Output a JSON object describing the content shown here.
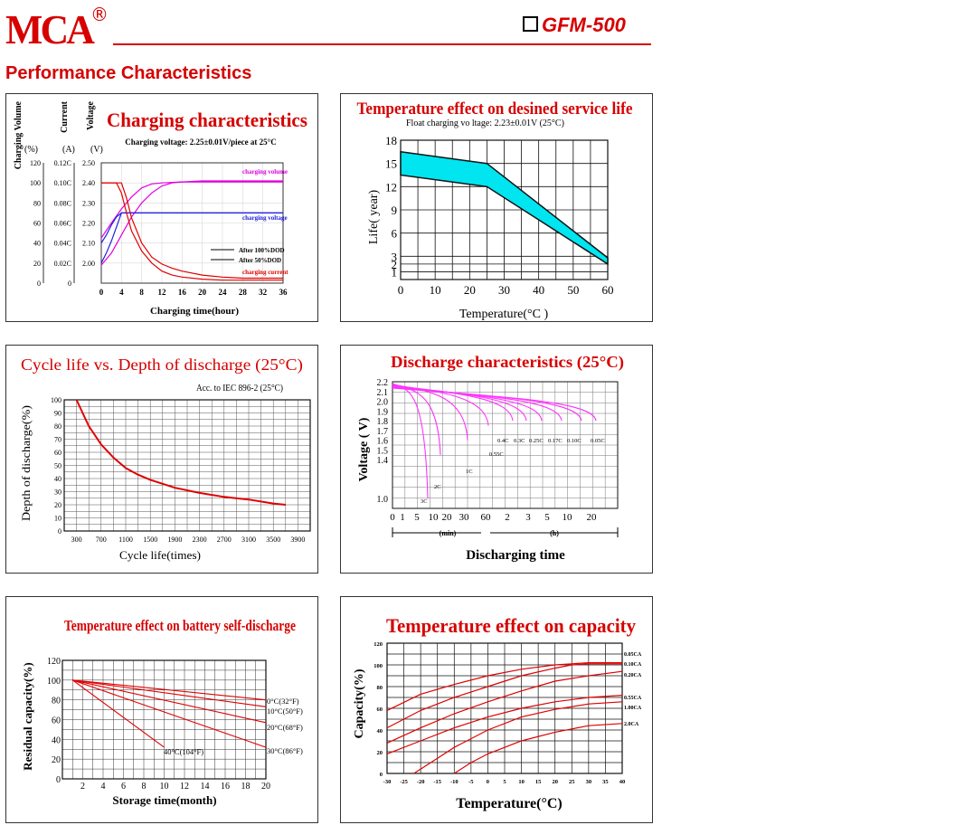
{
  "header": {
    "brand": "MCA",
    "registered": "®",
    "model": "GFM-500",
    "section_title": "Performance Characteristics"
  },
  "colors": {
    "accent": "#d60000",
    "magenta": "#e000e0",
    "blue": "#2020e0",
    "cyan": "#00e5f0",
    "pink": "#ff33ff"
  },
  "chart_data": [
    {
      "id": "charging",
      "type": "line",
      "title": "Charging characteristics",
      "subtitle": "Charging voltage: 2.25±0.01V/piece at 25°C",
      "xlabel": "Charging time(hour)",
      "ylabels": [
        "Charging Volume",
        "Current",
        "Voltage"
      ],
      "units": [
        "(%)",
        "(A)",
        "(V)"
      ],
      "xticks": [
        "0",
        "4",
        "8",
        "12",
        "16",
        "20",
        "24",
        "28",
        "32",
        "36"
      ],
      "xlim": [
        0,
        36
      ],
      "volume_ticks": [
        "120",
        "100",
        "80",
        "60",
        "40",
        "20",
        "0"
      ],
      "current_ticks": [
        "0.12C",
        "0.10C",
        "0.08C",
        "0.06C",
        "0.04C",
        "0.02C",
        "0"
      ],
      "voltage_ticks": [
        "2.50",
        "2.40",
        "2.30",
        "2.20",
        "2.10",
        "2.00"
      ],
      "ylim": [
        0,
        120
      ],
      "legend": [
        "After 100%DOD",
        "After 50%DOD"
      ],
      "curve_labels": [
        "charging volume",
        "charging voltage",
        "charging current"
      ],
      "series": [
        {
          "name": "charging volume",
          "color": "#e000e0",
          "x": [
            0,
            2,
            4,
            6,
            8,
            10,
            12,
            14,
            16,
            20,
            24,
            28,
            36
          ],
          "y": [
            18,
            30,
            48,
            66,
            80,
            90,
            97,
            100,
            101,
            102,
            102,
            102,
            102
          ]
        },
        {
          "name": "charging volume",
          "color": "#e000e0",
          "x": [
            0,
            2,
            4,
            6,
            8,
            10,
            12,
            16,
            20,
            36
          ],
          "y": [
            45,
            60,
            74,
            86,
            95,
            99,
            100,
            101,
            101,
            101
          ]
        },
        {
          "name": "charging voltage",
          "color": "#2020e0",
          "x": [
            0,
            1,
            2,
            3,
            4,
            6,
            36
          ],
          "y": [
            40,
            48,
            58,
            66,
            70,
            70,
            70
          ]
        },
        {
          "name": "charging voltage",
          "color": "#2020e0",
          "x": [
            0,
            1,
            2,
            3,
            4,
            36
          ],
          "y": [
            20,
            30,
            42,
            56,
            70,
            70
          ]
        },
        {
          "name": "charging current",
          "color": "#e00000",
          "x": [
            0,
            4,
            5,
            6,
            8,
            10,
            12,
            14,
            16,
            20,
            24,
            28,
            36
          ],
          "y": [
            100,
            100,
            85,
            65,
            40,
            26,
            19,
            15,
            12,
            8,
            6,
            5,
            5
          ]
        },
        {
          "name": "charging current",
          "color": "#e00000",
          "x": [
            0,
            3,
            4,
            5,
            6,
            8,
            10,
            12,
            14,
            16,
            20,
            24,
            36
          ],
          "y": [
            100,
            100,
            90,
            70,
            52,
            32,
            20,
            12,
            8,
            6,
            4,
            3,
            3
          ]
        }
      ]
    },
    {
      "id": "temp-life",
      "type": "area",
      "title": "Temperature effect on desined service life",
      "subtitle": "Float charging vo ltage: 2.23±0.01V (25°C)",
      "xlabel": "Temperature(°C )",
      "ylabel": "Life( year)",
      "xticks": [
        "0",
        "10",
        "20",
        "30",
        "40",
        "50",
        "60"
      ],
      "yticks": [
        "1",
        "2",
        "3",
        "6",
        "9",
        "12",
        "15",
        "18"
      ],
      "xlim": [
        0,
        60
      ],
      "ylim": [
        0,
        18
      ],
      "band_upper": {
        "x": [
          0,
          25,
          60
        ],
        "y": [
          16.5,
          15,
          2.8
        ]
      },
      "band_lower": {
        "x": [
          0,
          25,
          60
        ],
        "y": [
          13.5,
          12,
          2
        ]
      }
    },
    {
      "id": "cycle-life",
      "type": "line",
      "title": "Cycle life vs. Depth of discharge (25°C)",
      "subtitle": "Acc. to IEC 896-2 (25°C)",
      "xlabel": "Cycle life(times)",
      "ylabel": "Depth of discharge(%)",
      "xticks": [
        "300",
        "700",
        "1100",
        "1500",
        "1900",
        "2300",
        "2700",
        "3100",
        "3500",
        "3900"
      ],
      "yticks": [
        "0",
        "10",
        "20",
        "30",
        "40",
        "50",
        "60",
        "70",
        "80",
        "90",
        "100"
      ],
      "xlim": [
        100,
        4100
      ],
      "ylim": [
        0,
        100
      ],
      "series": [
        {
          "x": [
            300,
            500,
            700,
            900,
            1100,
            1300,
            1500,
            1900,
            2300,
            2700,
            3100,
            3500,
            3700
          ],
          "y": [
            100,
            80,
            66,
            56,
            48,
            43,
            39,
            33,
            29,
            26,
            24,
            21,
            20
          ]
        }
      ]
    },
    {
      "id": "discharge",
      "type": "line",
      "title": "Discharge characteristics (25°C)",
      "xlabel": "Discharging time",
      "ylabel": "Voltage ( V)",
      "xticks": [
        "0",
        "1",
        "5",
        "10",
        "20",
        "30",
        "60",
        "2",
        "3",
        "5",
        "10",
        "20"
      ],
      "xunits": [
        "(min)",
        "(h)"
      ],
      "yticks": [
        "2.2",
        "2.1",
        "2.0",
        "1.9",
        "1.8",
        "1.7",
        "1.6",
        "1.5",
        "1.4",
        "1.0"
      ],
      "ylim": [
        0.9,
        2.2
      ],
      "curve_labels": [
        "3C",
        "2C",
        "1C",
        "0.55C",
        "0.4C",
        "0.3C",
        "0.25C",
        "0.17C",
        "0.10C",
        "0.05C"
      ]
    },
    {
      "id": "self-discharge",
      "type": "line",
      "title": "Temperature effect on battery self-discharge",
      "xlabel": "Storage time(month)",
      "ylabel": "Residual capacity(%)",
      "xticks": [
        "2",
        "4",
        "6",
        "8",
        "10",
        "12",
        "14",
        "16",
        "18",
        "20"
      ],
      "yticks": [
        "0",
        "20",
        "40",
        "60",
        "80",
        "100",
        "120"
      ],
      "xlim": [
        0,
        20
      ],
      "ylim": [
        0,
        120
      ],
      "series": [
        {
          "name": "0°C(32°F)",
          "x": [
            1,
            20
          ],
          "y": [
            100,
            80
          ]
        },
        {
          "name": "10°C(50°F)",
          "x": [
            1,
            20
          ],
          "y": [
            100,
            73
          ]
        },
        {
          "name": "20°C(68°F)",
          "x": [
            1,
            20
          ],
          "y": [
            100,
            57
          ]
        },
        {
          "name": "30°C(86°F)",
          "x": [
            1,
            20
          ],
          "y": [
            100,
            32
          ]
        },
        {
          "name": "40°C(104°F)",
          "x": [
            1,
            10
          ],
          "y": [
            100,
            32
          ]
        }
      ]
    },
    {
      "id": "temp-capacity",
      "type": "line",
      "title": "Temperature effect on capacity",
      "xlabel": "Temperature(°C)",
      "ylabel": "Capacity(%)",
      "xticks": [
        "-30",
        "-25",
        "-20",
        "-15",
        "-10",
        "-5",
        "0",
        "5",
        "10",
        "15",
        "20",
        "25",
        "30",
        "35",
        "40"
      ],
      "yticks": [
        "0",
        "20",
        "40",
        "60",
        "80",
        "100",
        "120"
      ],
      "xlim": [
        -30,
        40
      ],
      "ylim": [
        0,
        120
      ],
      "series": [
        {
          "name": "0.05CA",
          "x": [
            -30,
            -20,
            -10,
            0,
            10,
            20,
            25,
            30,
            40
          ],
          "y": [
            58,
            73,
            82,
            90,
            96,
            100,
            101,
            102,
            102
          ]
        },
        {
          "name": "0.10CA",
          "x": [
            -30,
            -20,
            -10,
            0,
            10,
            20,
            25,
            30,
            40
          ],
          "y": [
            42,
            58,
            70,
            80,
            90,
            97,
            100,
            101,
            101
          ]
        },
        {
          "name": "0.20CA",
          "x": [
            -30,
            -20,
            -10,
            0,
            10,
            20,
            30,
            40
          ],
          "y": [
            28,
            42,
            55,
            66,
            76,
            85,
            90,
            94
          ]
        },
        {
          "name": "0.55CA",
          "x": [
            -30,
            -20,
            -10,
            0,
            10,
            20,
            30,
            40
          ],
          "y": [
            18,
            30,
            42,
            52,
            60,
            66,
            70,
            72
          ]
        },
        {
          "name": "1.00CA",
          "x": [
            -22,
            -15,
            -10,
            0,
            10,
            20,
            30,
            40
          ],
          "y": [
            0,
            14,
            24,
            40,
            52,
            59,
            64,
            66
          ]
        },
        {
          "name": "2.0CA",
          "x": [
            -10,
            -5,
            0,
            10,
            20,
            30,
            40
          ],
          "y": [
            0,
            10,
            18,
            30,
            38,
            44,
            46
          ]
        }
      ]
    }
  ]
}
